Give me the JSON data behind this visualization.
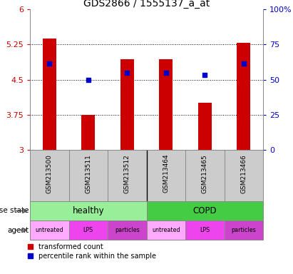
{
  "title": "GDS2866 / 1555137_a_at",
  "samples": [
    "GSM213500",
    "GSM213511",
    "GSM213512",
    "GSM213464",
    "GSM213465",
    "GSM213466"
  ],
  "bar_values": [
    5.38,
    3.75,
    4.93,
    4.93,
    4.0,
    5.28
  ],
  "dot_values": [
    4.85,
    4.5,
    4.65,
    4.65,
    4.6,
    4.85
  ],
  "y_min": 3.0,
  "y_max": 6.0,
  "y_ticks": [
    3.0,
    3.75,
    4.5,
    5.25,
    6.0
  ],
  "y_tick_labels": [
    "3",
    "3.75",
    "4.5",
    "5.25",
    "6"
  ],
  "y2_ticks": [
    0,
    25,
    50,
    75,
    100
  ],
  "y2_tick_labels": [
    "0",
    "25",
    "50",
    "75",
    "100%"
  ],
  "bar_color": "#cc0000",
  "dot_color": "#0000cc",
  "disease_colors": {
    "healthy": "#99ee99",
    "COPD": "#44cc44"
  },
  "agent_colors_list": [
    "#ffaaff",
    "#ee44ee",
    "#cc44cc",
    "#ffaaff",
    "#ee44ee",
    "#cc44cc"
  ],
  "agents": [
    "untreated",
    "LPS",
    "particles",
    "untreated",
    "LPS",
    "particles"
  ],
  "label_row1": "disease state",
  "label_row2": "agent",
  "legend_red": "transformed count",
  "legend_blue": "percentile rank within the sample",
  "bar_width": 0.35,
  "tick_color_left": "#cc0000",
  "tick_color_right": "#0000cc",
  "bg_color": "#cccccc",
  "spine_color": "#888888"
}
